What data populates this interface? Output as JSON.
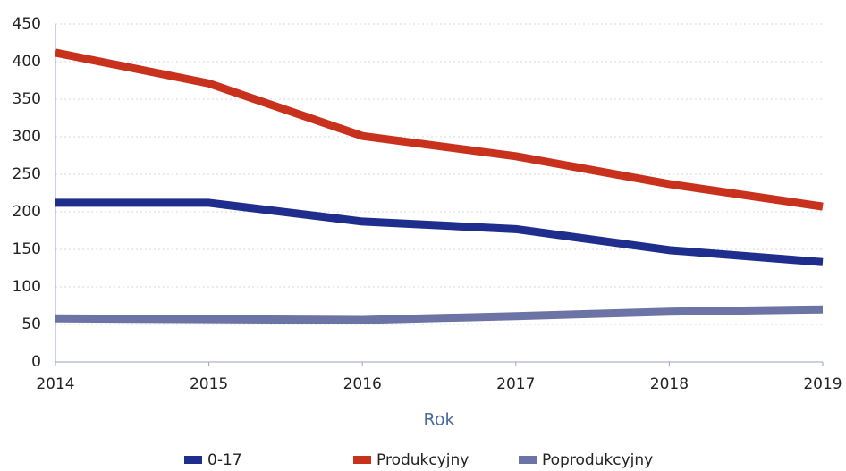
{
  "chart_data": {
    "type": "line",
    "x_label": "Rok",
    "x": [
      2014,
      2015,
      2016,
      2017,
      2018,
      2019
    ],
    "xlim": [
      2014,
      2019
    ],
    "xticks": [
      2014,
      2015,
      2016,
      2017,
      2018,
      2019
    ],
    "ylim": [
      0,
      450
    ],
    "yticks": [
      0,
      50,
      100,
      150,
      200,
      250,
      300,
      350,
      400,
      450
    ],
    "grid": true,
    "legend": "bottom",
    "series": [
      {
        "name": "0-17",
        "color": "#1f2e8c",
        "values": [
          212,
          212,
          187,
          177,
          149,
          133
        ]
      },
      {
        "name": "Produkcyjny",
        "color": "#c8311c",
        "values": [
          412,
          371,
          301,
          274,
          237,
          207
        ]
      },
      {
        "name": "Poprodukcyjny",
        "color": "#6c74a6",
        "values": [
          58,
          57,
          56,
          61,
          67,
          70
        ]
      }
    ]
  }
}
